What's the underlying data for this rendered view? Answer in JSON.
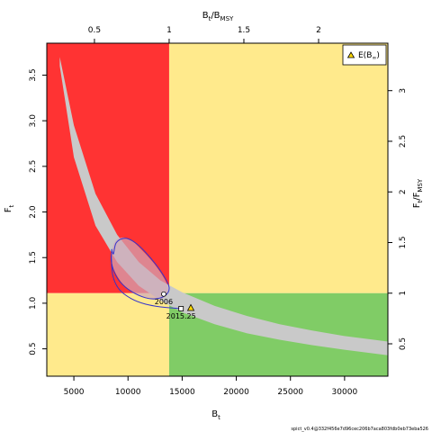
{
  "chart_data": {
    "type": "phase-plot",
    "xlabel": "B",
    "xlabel_sub": "t",
    "ylabel": "F",
    "ylabel_sub": "t",
    "top_label": "B",
    "top_label_sub1": "t",
    "top_label_mid": "/B",
    "top_label_sub2": "MSY",
    "right_label": "F",
    "right_label_sub1": "t",
    "right_label_mid": "/F",
    "right_label_sub2": "MSY",
    "xlim": [
      2500,
      34000
    ],
    "ylim": [
      0.2,
      3.85
    ],
    "x_ticks": [
      5000,
      10000,
      15000,
      20000,
      25000,
      30000
    ],
    "x_tick_labels": [
      "5000",
      "10000",
      "15000",
      "20000",
      "25000",
      "30000"
    ],
    "y_ticks": [
      0.5,
      1.0,
      1.5,
      2.0,
      2.5,
      3.0,
      3.5
    ],
    "y_tick_labels": [
      "0.5",
      "1.0",
      "1.5",
      "2.0",
      "2.5",
      "3.0",
      "3.5"
    ],
    "bmsy": 13800,
    "fmsy": 1.11,
    "top_ticks": [
      0.5,
      1,
      1.5,
      2
    ],
    "top_tick_labels": [
      "0.5",
      "1",
      "1.5",
      "2"
    ],
    "right_ticks": [
      0.5,
      1,
      1.5,
      2,
      2.5,
      3
    ],
    "right_tick_labels": [
      "0.5",
      "1",
      "1.5",
      "2",
      "2.5",
      "3"
    ],
    "zone_colors": {
      "red": "#ff3333",
      "yellow": "#ffea8c",
      "green": "#80cc66"
    },
    "equilibrium_band": {
      "color": "#c9c9c9",
      "upper": [
        [
          3700,
          3.7
        ],
        [
          5000,
          2.95
        ],
        [
          7000,
          2.2
        ],
        [
          9000,
          1.75
        ],
        [
          11000,
          1.45
        ],
        [
          13000,
          1.25
        ],
        [
          15000,
          1.12
        ],
        [
          18000,
          0.97
        ],
        [
          21000,
          0.86
        ],
        [
          24000,
          0.77
        ],
        [
          27000,
          0.7
        ],
        [
          30000,
          0.64
        ],
        [
          34000,
          0.58
        ]
      ],
      "lower": [
        [
          3700,
          3.6
        ],
        [
          5000,
          2.6
        ],
        [
          7000,
          1.85
        ],
        [
          9000,
          1.45
        ],
        [
          11000,
          1.19
        ],
        [
          13000,
          1.03
        ],
        [
          15000,
          0.9
        ],
        [
          18000,
          0.77
        ],
        [
          21000,
          0.67
        ],
        [
          24000,
          0.6
        ],
        [
          27000,
          0.54
        ],
        [
          30000,
          0.49
        ],
        [
          34000,
          0.43
        ]
      ]
    },
    "confidence_ellipse": {
      "color": "#d0a8b8",
      "points": [
        [
          8600,
          1.62
        ],
        [
          9000,
          1.7
        ],
        [
          9600,
          1.72
        ],
        [
          10400,
          1.68
        ],
        [
          11300,
          1.58
        ],
        [
          12300,
          1.45
        ],
        [
          13200,
          1.3
        ],
        [
          13700,
          1.17
        ],
        [
          13500,
          1.08
        ],
        [
          12800,
          1.04
        ],
        [
          11800,
          1.05
        ],
        [
          10600,
          1.11
        ],
        [
          9600,
          1.2
        ],
        [
          8900,
          1.32
        ],
        [
          8500,
          1.45
        ]
      ]
    },
    "trajectory": {
      "color": "#3333cc",
      "points": [
        [
          8500,
          1.58
        ],
        [
          8650,
          1.54
        ],
        [
          8750,
          1.6
        ],
        [
          8900,
          1.66
        ],
        [
          9300,
          1.7
        ],
        [
          9900,
          1.71
        ],
        [
          10700,
          1.66
        ],
        [
          11600,
          1.56
        ],
        [
          12600,
          1.42
        ],
        [
          13400,
          1.28
        ],
        [
          13800,
          1.17
        ],
        [
          13500,
          1.09
        ],
        [
          12700,
          1.05
        ],
        [
          11600,
          1.06
        ],
        [
          10300,
          1.13
        ],
        [
          9300,
          1.23
        ],
        [
          8700,
          1.35
        ],
        [
          8450,
          1.47
        ],
        [
          8500,
          1.58
        ]
      ]
    },
    "prediction_line": {
      "color": "#3333cc",
      "points": [
        [
          8450,
          1.52
        ],
        [
          8600,
          1.3
        ],
        [
          9200,
          1.15
        ],
        [
          10300,
          1.05
        ],
        [
          11600,
          0.99
        ],
        [
          13000,
          0.96
        ],
        [
          14900,
          0.94
        ]
      ]
    },
    "point_2006": {
      "x": 13300,
      "y": 1.1,
      "label": "2006"
    },
    "point_2015": {
      "x": 14900,
      "y": 0.94,
      "label": "2015.25"
    },
    "equilibrium_point": {
      "x": 15800,
      "y": 0.95
    },
    "legend": {
      "label": "E(B",
      "sub": "∞",
      "close": ")",
      "position": "top-right"
    }
  },
  "footer": "spict_v0.4@332f456e7d96cec206b7aca803fdb0eb73eba526"
}
